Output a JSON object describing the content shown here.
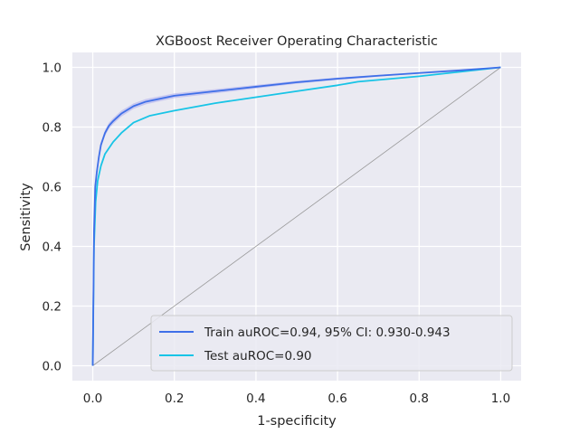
{
  "chart_data": {
    "type": "line",
    "title": "XGBoost Receiver Operating Characteristic",
    "xlabel": "1-specificity",
    "ylabel": "Sensitivity",
    "xlim": [
      -0.05,
      1.05
    ],
    "ylim": [
      -0.05,
      1.05
    ],
    "xticks": [
      0.0,
      0.2,
      0.4,
      0.6,
      0.8,
      1.0
    ],
    "yticks": [
      0.0,
      0.2,
      0.4,
      0.6,
      0.8,
      1.0
    ],
    "xtick_labels": [
      "0.0",
      "0.2",
      "0.4",
      "0.6",
      "0.8",
      "1.0"
    ],
    "ytick_labels": [
      "0.0",
      "0.2",
      "0.4",
      "0.6",
      "0.8",
      "1.0"
    ],
    "grid": true,
    "legend_position": "lower-right",
    "reference_line": {
      "x": [
        0,
        1
      ],
      "y": [
        0,
        1
      ],
      "color": "#999999"
    },
    "series": [
      {
        "name": "Train auROC=0.94, 95% CI: 0.930-0.943",
        "color": "#3f6fe8",
        "band_color": "#b8b8f0",
        "x": [
          0.0,
          0.003,
          0.006,
          0.01,
          0.015,
          0.02,
          0.03,
          0.04,
          0.05,
          0.07,
          0.1,
          0.13,
          0.2,
          0.3,
          0.4,
          0.5,
          0.6,
          0.7,
          0.8,
          0.9,
          1.0
        ],
        "y": [
          0.0,
          0.45,
          0.6,
          0.65,
          0.7,
          0.74,
          0.78,
          0.805,
          0.82,
          0.845,
          0.87,
          0.885,
          0.905,
          0.92,
          0.935,
          0.95,
          0.962,
          0.972,
          0.981,
          0.99,
          1.0
        ],
        "y_low": [
          0.0,
          0.44,
          0.59,
          0.64,
          0.69,
          0.73,
          0.77,
          0.795,
          0.81,
          0.835,
          0.861,
          0.876,
          0.897,
          0.913,
          0.929,
          0.945,
          0.958,
          0.969,
          0.979,
          0.989,
          1.0
        ],
        "y_high": [
          0.0,
          0.46,
          0.61,
          0.66,
          0.71,
          0.75,
          0.79,
          0.815,
          0.83,
          0.855,
          0.879,
          0.894,
          0.913,
          0.927,
          0.941,
          0.955,
          0.966,
          0.975,
          0.983,
          0.991,
          1.0
        ]
      },
      {
        "name": "Test auROC=0.90",
        "color": "#18c4e6",
        "x": [
          0.0,
          0.003,
          0.007,
          0.012,
          0.02,
          0.03,
          0.05,
          0.07,
          0.1,
          0.14,
          0.2,
          0.3,
          0.4,
          0.5,
          0.6,
          0.65,
          0.8,
          1.0
        ],
        "y": [
          0.0,
          0.4,
          0.55,
          0.62,
          0.67,
          0.71,
          0.75,
          0.78,
          0.815,
          0.838,
          0.855,
          0.88,
          0.9,
          0.92,
          0.94,
          0.952,
          0.97,
          1.0
        ]
      }
    ]
  }
}
